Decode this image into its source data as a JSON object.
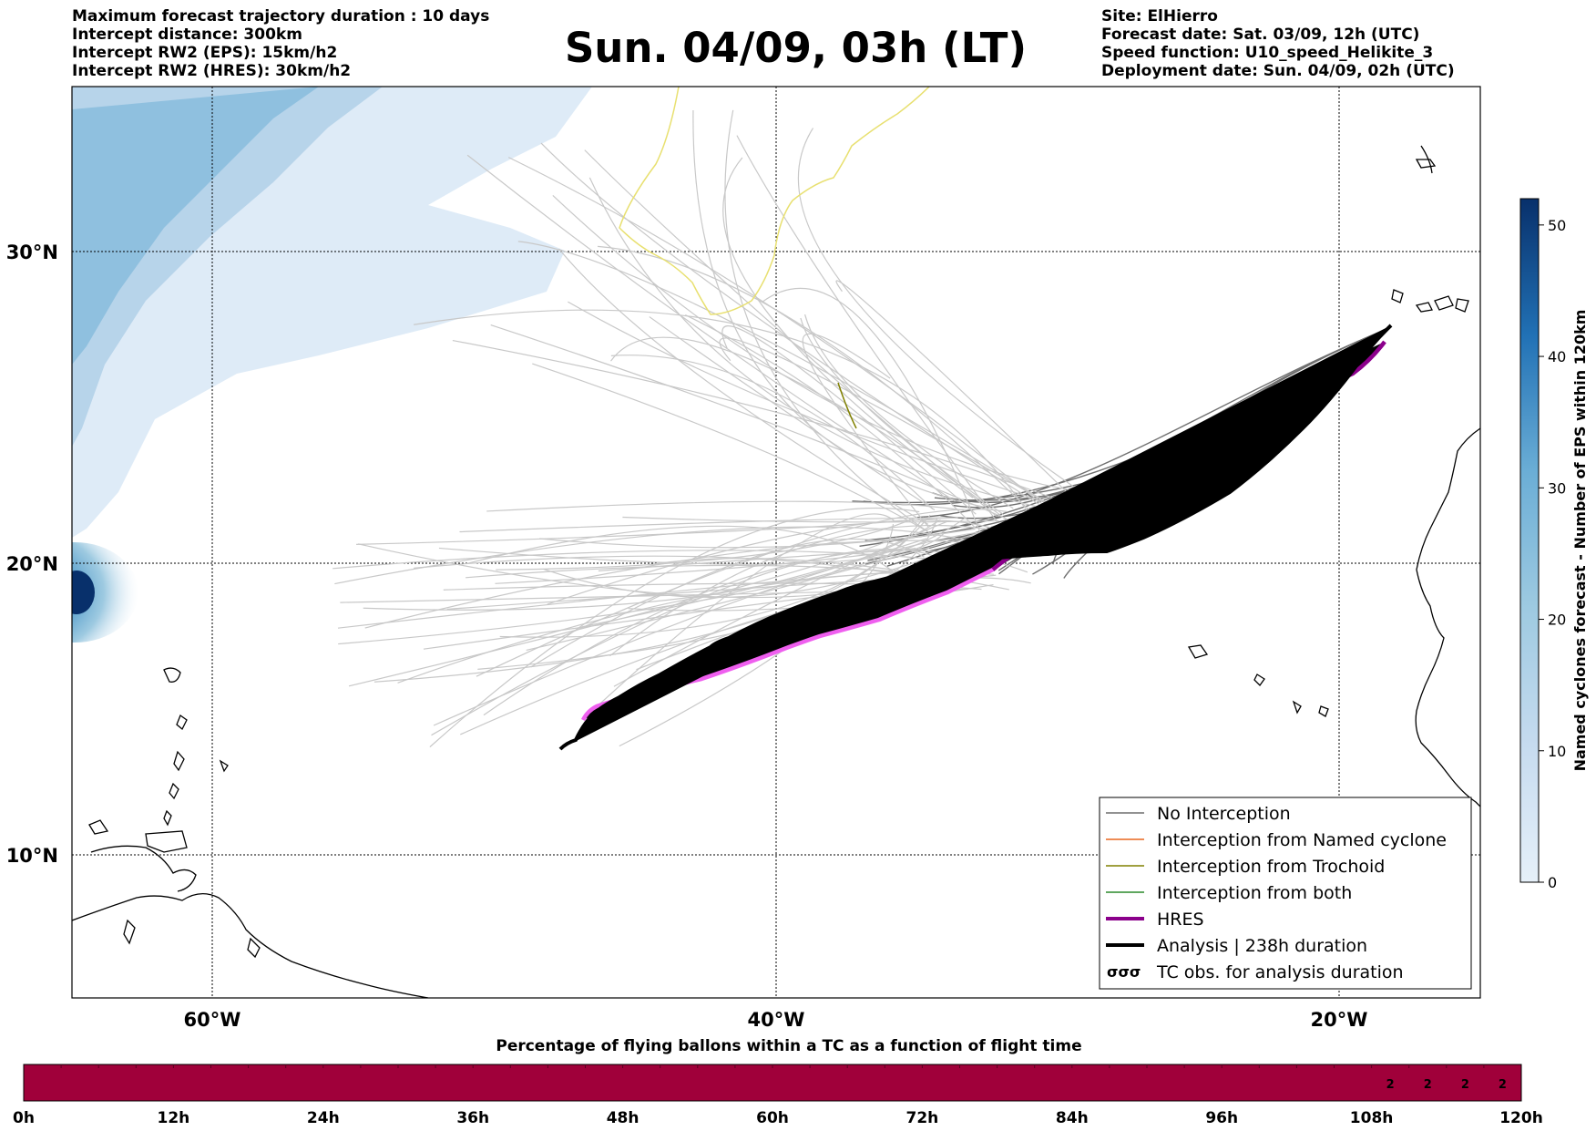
{
  "info_left": [
    "Maximum forecast trajectory duration : 10 days",
    "Intercept distance: 300km",
    "Intercept RW2 (EPS):  15km/h2",
    "Intercept RW2 (HRES): 30km/h2"
  ],
  "title": "Sun. 04/09, 03h (LT)",
  "info_right": [
    "Site: ElHierro",
    "Forecast date: Sat. 03/09, 12h (UTC)",
    "Speed function: U10_speed_Helikite_3",
    "Deployment date: Sun. 04/09, 02h (UTC)"
  ],
  "map": {
    "lon_labels": [
      "60°W",
      "40°W",
      "20°W"
    ],
    "lat_labels": [
      "30°N",
      "20°N",
      "10°N"
    ]
  },
  "legend": {
    "items": [
      {
        "label": "No Interception",
        "color": "#6f6f6f",
        "symbol": "line"
      },
      {
        "label": "Interception from Named cyclone",
        "color": "#e8661f",
        "symbol": "line"
      },
      {
        "label": "Interception from Trochoid",
        "color": "#808000",
        "symbol": "line"
      },
      {
        "label": "Interception from both",
        "color": "#2a8a2a",
        "symbol": "line"
      },
      {
        "label": "HRES",
        "color": "#8b008b",
        "symbol": "thick-line"
      },
      {
        "label": "Analysis | 238h duration",
        "color": "#000000",
        "symbol": "thick-line"
      },
      {
        "label": "TC obs. for analysis duration",
        "color": "#000000",
        "symbol": "cyclone-glyphs"
      }
    ]
  },
  "colorbar": {
    "label": "Named cyclones forecast - Number of EPS within 120km",
    "ticks": [
      "0",
      "10",
      "20",
      "30",
      "40",
      "50"
    ],
    "range": [
      0,
      52
    ],
    "color_low": "#e6f0f9",
    "color_high": "#08306b"
  },
  "timeline": {
    "title": "Percentage of flying ballons within a TC as a function of flight time",
    "ticks": [
      "0h",
      "12h",
      "24h",
      "36h",
      "48h",
      "60h",
      "72h",
      "84h",
      "96h",
      "108h",
      "120h"
    ],
    "bar_color": "#a0003a",
    "values": [
      "2",
      "2",
      "2",
      "2"
    ]
  }
}
